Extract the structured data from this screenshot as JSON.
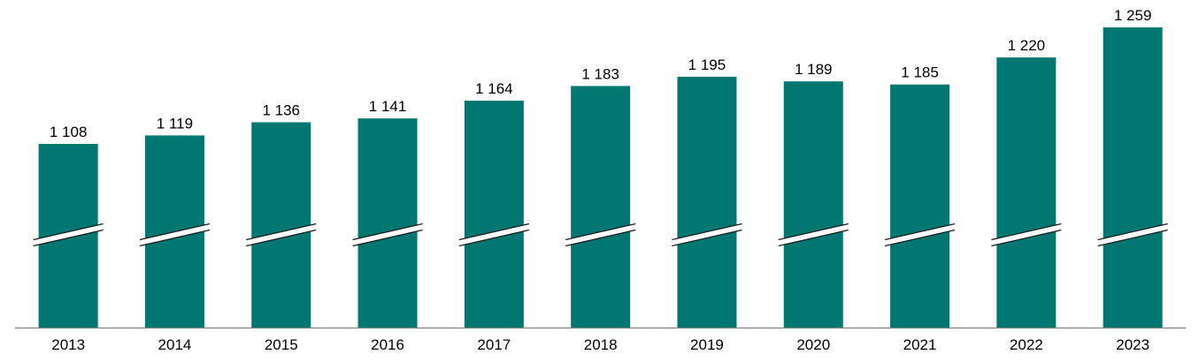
{
  "chart_data": {
    "type": "bar",
    "title": "",
    "xlabel": "",
    "ylabel": "",
    "categories": [
      "2013",
      "2014",
      "2015",
      "2016",
      "2017",
      "2018",
      "2019",
      "2020",
      "2021",
      "2022",
      "2023"
    ],
    "values": [
      1108,
      1119,
      1136,
      1141,
      1164,
      1183,
      1195,
      1189,
      1185,
      1220,
      1259
    ],
    "value_labels": [
      "1 108",
      "1 119",
      "1 136",
      "1 141",
      "1 164",
      "1 183",
      "1 195",
      "1 189",
      "1 185",
      "1 220",
      "1 259"
    ],
    "axis_break": true,
    "grid": false,
    "legend": "none",
    "bar_color": "#007770",
    "axis_color": "#7f7f7f",
    "break_color": "#ffffff"
  }
}
